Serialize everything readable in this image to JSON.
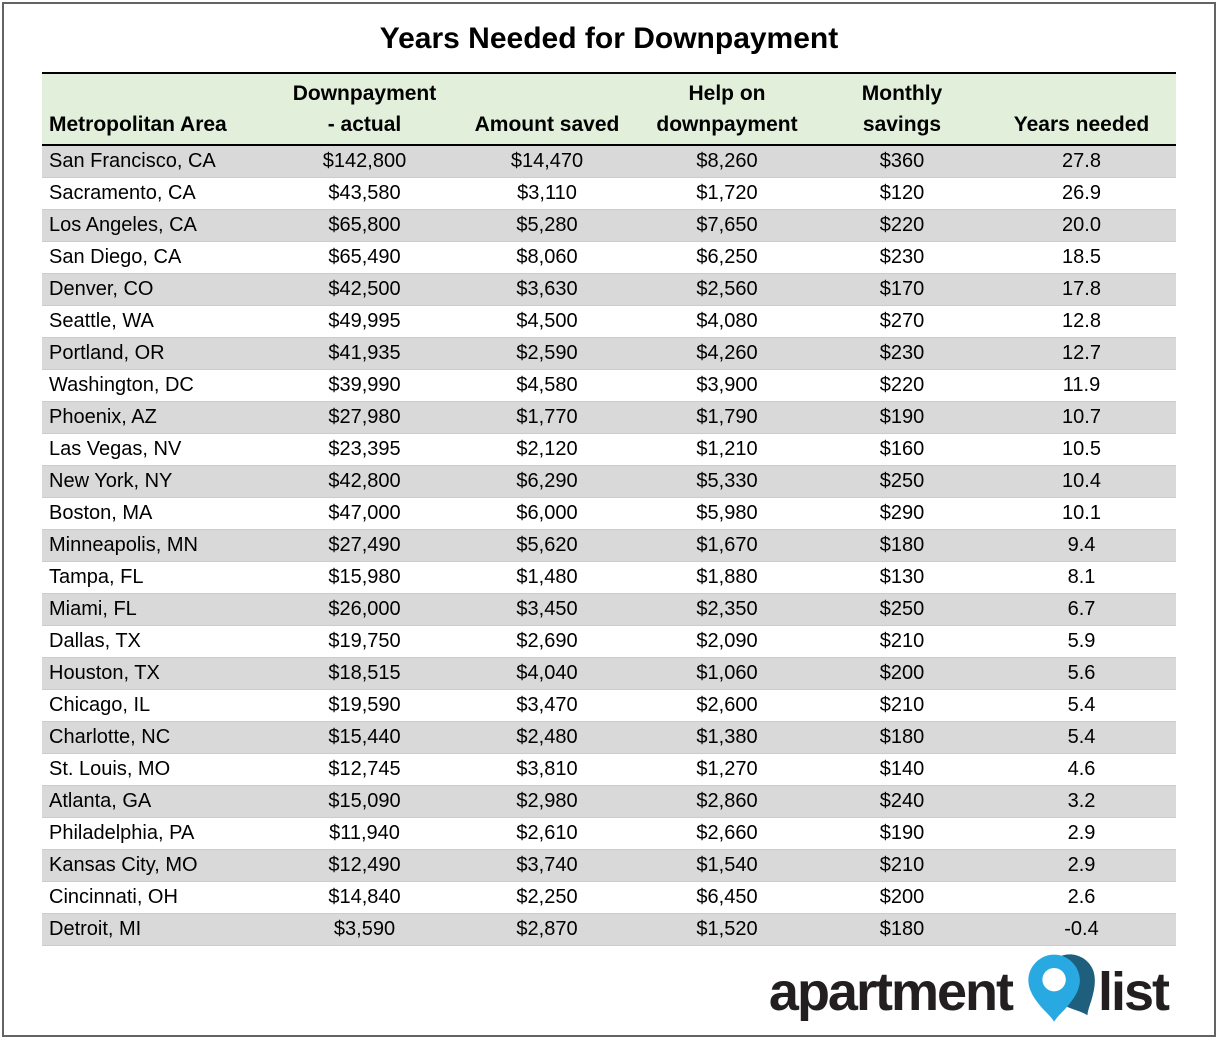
{
  "title": "Years Needed for Downpayment",
  "table": {
    "headers": [
      {
        "line1": "",
        "line2": "Metropolitan Area"
      },
      {
        "line1": "Downpayment",
        "line2": "- actual"
      },
      {
        "line1": "",
        "line2": "Amount saved"
      },
      {
        "line1": "Help on",
        "line2": "downpayment"
      },
      {
        "line1": "Monthly",
        "line2": "savings"
      },
      {
        "line1": "",
        "line2": "Years needed"
      }
    ]
  },
  "chart_data": {
    "type": "table",
    "title": "Years Needed for Downpayment",
    "columns": [
      "Metropolitan Area",
      "Downpayment - actual",
      "Amount saved",
      "Help on downpayment",
      "Monthly savings",
      "Years needed"
    ],
    "rows": [
      [
        "San Francisco, CA",
        "$142,800",
        "$14,470",
        "$8,260",
        "$360",
        "27.8"
      ],
      [
        "Sacramento, CA",
        "$43,580",
        "$3,110",
        "$1,720",
        "$120",
        "26.9"
      ],
      [
        "Los Angeles, CA",
        "$65,800",
        "$5,280",
        "$7,650",
        "$220",
        "20.0"
      ],
      [
        "San Diego, CA",
        "$65,490",
        "$8,060",
        "$6,250",
        "$230",
        "18.5"
      ],
      [
        "Denver, CO",
        "$42,500",
        "$3,630",
        "$2,560",
        "$170",
        "17.8"
      ],
      [
        "Seattle, WA",
        "$49,995",
        "$4,500",
        "$4,080",
        "$270",
        "12.8"
      ],
      [
        "Portland, OR",
        "$41,935",
        "$2,590",
        "$4,260",
        "$230",
        "12.7"
      ],
      [
        "Washington, DC",
        "$39,990",
        "$4,580",
        "$3,900",
        "$220",
        "11.9"
      ],
      [
        "Phoenix, AZ",
        "$27,980",
        "$1,770",
        "$1,790",
        "$190",
        "10.7"
      ],
      [
        "Las Vegas, NV",
        "$23,395",
        "$2,120",
        "$1,210",
        "$160",
        "10.5"
      ],
      [
        "New York, NY",
        "$42,800",
        "$6,290",
        "$5,330",
        "$250",
        "10.4"
      ],
      [
        "Boston, MA",
        "$47,000",
        "$6,000",
        "$5,980",
        "$290",
        "10.1"
      ],
      [
        "Minneapolis, MN",
        "$27,490",
        "$5,620",
        "$1,670",
        "$180",
        "9.4"
      ],
      [
        "Tampa, FL",
        "$15,980",
        "$1,480",
        "$1,880",
        "$130",
        "8.1"
      ],
      [
        "Miami, FL",
        "$26,000",
        "$3,450",
        "$2,350",
        "$250",
        "6.7"
      ],
      [
        "Dallas, TX",
        "$19,750",
        "$2,690",
        "$2,090",
        "$210",
        "5.9"
      ],
      [
        "Houston, TX",
        "$18,515",
        "$4,040",
        "$1,060",
        "$200",
        "5.6"
      ],
      [
        "Chicago, IL",
        "$19,590",
        "$3,470",
        "$2,600",
        "$210",
        "5.4"
      ],
      [
        "Charlotte, NC",
        "$15,440",
        "$2,480",
        "$1,380",
        "$180",
        "5.4"
      ],
      [
        "St. Louis, MO",
        "$12,745",
        "$3,810",
        "$1,270",
        "$140",
        "4.6"
      ],
      [
        "Atlanta, GA",
        "$15,090",
        "$2,980",
        "$2,860",
        "$240",
        "3.2"
      ],
      [
        "Philadelphia, PA",
        "$11,940",
        "$2,610",
        "$2,660",
        "$190",
        "2.9"
      ],
      [
        "Kansas City, MO",
        "$12,490",
        "$3,740",
        "$1,540",
        "$210",
        "2.9"
      ],
      [
        "Cincinnati, OH",
        "$14,840",
        "$2,250",
        "$6,450",
        "$200",
        "2.6"
      ],
      [
        "Detroit, MI",
        "$3,590",
        "$2,870",
        "$1,520",
        "$180",
        "-0.4"
      ]
    ]
  },
  "logo": {
    "word1": "apartment",
    "word2": "list",
    "pin_light": "#29a9e1",
    "pin_dark": "#1d5f7d",
    "text_color": "#231f20"
  },
  "colors": {
    "header_bg": "#e2efda",
    "stripe_bg": "#d9d9d9",
    "row_border": "#bcd0e4",
    "table_border": "#000000"
  }
}
